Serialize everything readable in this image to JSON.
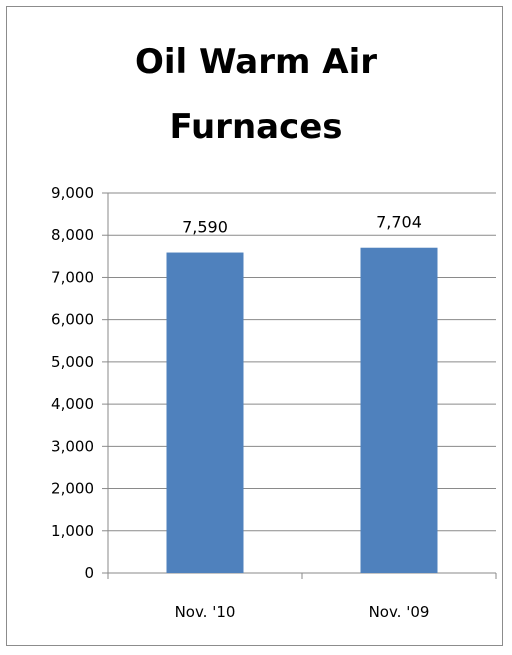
{
  "chart_data": {
    "type": "bar",
    "title_lines": [
      "Oil Warm Air",
      "Furnaces"
    ],
    "categories": [
      "Nov. '10",
      "Nov. '09"
    ],
    "values": [
      7590,
      7704
    ],
    "data_labels": [
      "7,590",
      "7,704"
    ],
    "ylim": [
      0,
      9000
    ],
    "ytick_values": [
      0,
      1000,
      2000,
      3000,
      4000,
      5000,
      6000,
      7000,
      8000,
      9000
    ],
    "ytick_labels": [
      "0",
      "1,000",
      "2,000",
      "3,000",
      "4,000",
      "5,000",
      "6,000",
      "7,000",
      "8,000",
      "9,000"
    ],
    "xlabel": "",
    "ylabel": "",
    "grid": true,
    "legend": "none",
    "bar_color": "#4f81bd"
  }
}
